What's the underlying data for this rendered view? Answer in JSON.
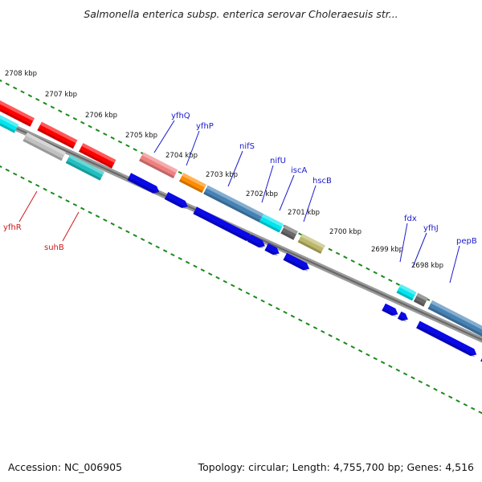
{
  "title": "Salmonella enterica subsp. enterica serovar Choleraesuis str...",
  "accession": "Accession: NC_006905",
  "topology": "Topology: circular; Length: 4,755,700 bp; Genes: 4,516",
  "colors": {
    "backbone": "#7a7a7a",
    "tick": "#1a8a1a",
    "cds": "#0a0ae6",
    "label_forward": "#1a1acc",
    "label_reverse": "#cc1a1a"
  },
  "tick_labels": [
    "2708 kbp",
    "2707 kbp",
    "2706 kbp",
    "2705 kbp",
    "2704 kbp",
    "2703 kbp",
    "2702 kbp",
    "2701 kbp",
    "2700 kbp",
    "2699 kbp",
    "2698 kbp"
  ],
  "gene_labels": {
    "forward": [
      "yfhQ",
      "yfhP",
      "nifS",
      "nifU",
      "iscA",
      "hscB",
      "fdx",
      "yfhJ",
      "pepB"
    ],
    "reverse": [
      "yfhR",
      "suhB"
    ]
  }
}
